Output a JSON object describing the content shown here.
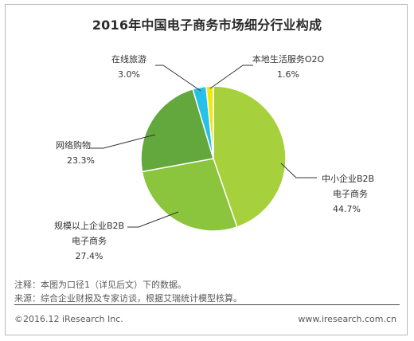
{
  "chart_data": {
    "type": "pie",
    "title": "2016年中国电子商务市场细分行业构成",
    "slices": [
      {
        "label": "中小企业B2B电子商务",
        "label_lines": [
          "中小企业B2B",
          "电子商务",
          "44.7%"
        ],
        "value": 44.7,
        "color": "#a6d13c"
      },
      {
        "label": "规模以上企业B2B电子商务",
        "label_lines": [
          "规模以上企业B2B",
          "电子商务",
          "27.4%"
        ],
        "value": 27.4,
        "color": "#8bc43d"
      },
      {
        "label": "网络购物",
        "label_lines": [
          "网络购物",
          "23.3%"
        ],
        "value": 23.3,
        "color": "#62a83c"
      },
      {
        "label": "在线旅游",
        "label_lines": [
          "在线旅游",
          "3.0%"
        ],
        "value": 3.0,
        "color": "#27c0e8"
      },
      {
        "label": "本地生活服务O2O",
        "label_lines": [
          "本地生活服务O2O",
          "1.6%"
        ],
        "value": 1.6,
        "color": "#f1e80f"
      }
    ]
  },
  "notes": {
    "note": "注释：本图为口径1（详见后文）下的数据。",
    "source": "来源：综合企业财报及专家访谈，根据艾瑞统计模型核算。"
  },
  "footer": {
    "copyright": "©2016.12 iResearch Inc.",
    "website": "www.iresearch.com.cn"
  }
}
